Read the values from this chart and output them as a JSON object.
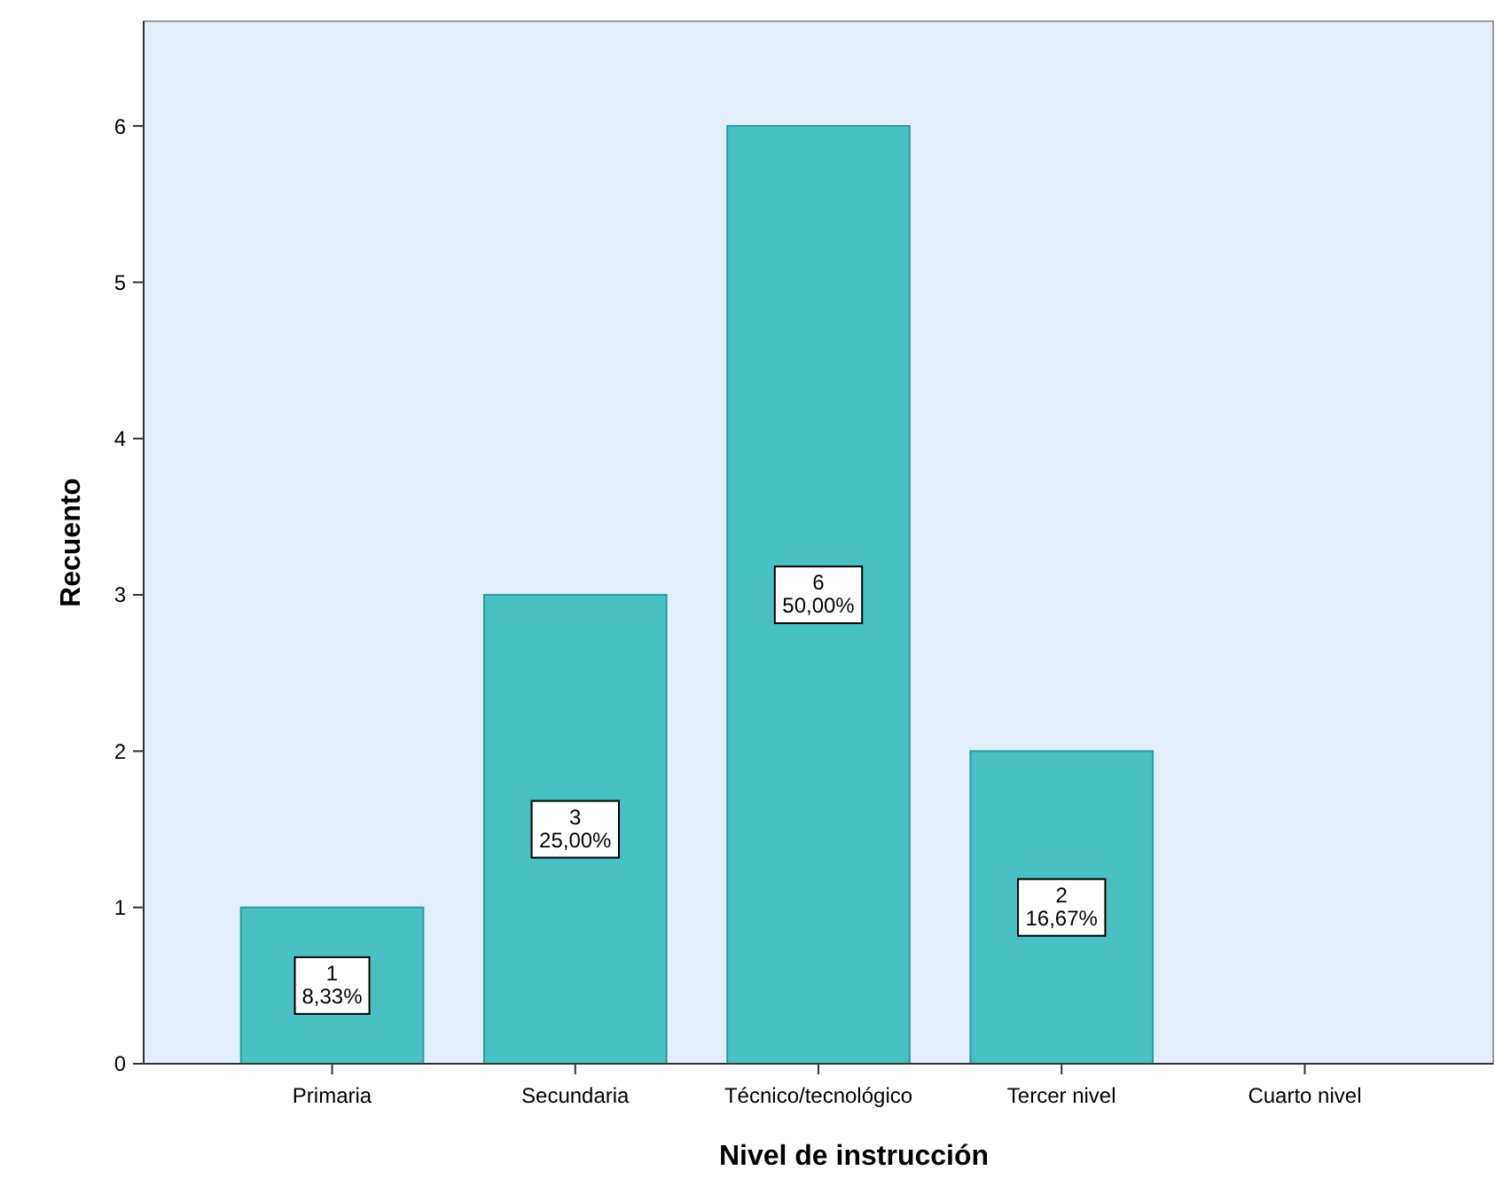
{
  "chart_data": {
    "type": "bar",
    "xlabel": "Nivel de instrucción",
    "ylabel": "Recuento",
    "categories": [
      "Primaria",
      "Secundaria",
      "Técnico/tecnológico",
      "Tercer nivel",
      "Cuarto nivel"
    ],
    "values": [
      1,
      3,
      6,
      2,
      0
    ],
    "value_labels": [
      "1\n8,33%",
      "3\n25,00%",
      "6\n50,00%",
      "2\n16,67%",
      null
    ],
    "color": "#47c1c4",
    "ylim": [
      0,
      6.67
    ],
    "yticks": [
      0,
      1,
      2,
      3,
      4,
      5,
      6
    ],
    "grid": false
  }
}
